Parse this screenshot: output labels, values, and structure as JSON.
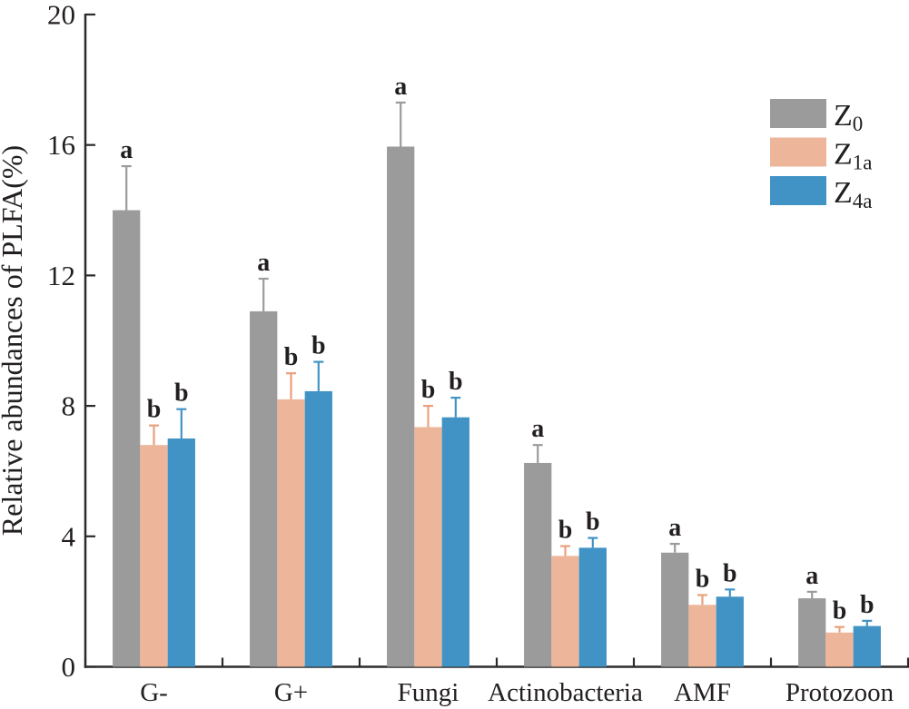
{
  "chart_data": {
    "type": "bar",
    "title": "",
    "xlabel": "",
    "ylabel": "Relative abundances of PLFA(%)",
    "ylim": [
      0,
      20
    ],
    "yticks": [
      0,
      4,
      8,
      12,
      16,
      20
    ],
    "grid": false,
    "legend_position": "top-right",
    "categories": [
      "G-",
      "G+",
      "Fungi",
      "Actinobacteria",
      "AMF",
      "Protozoon"
    ],
    "series": [
      {
        "name": "Z0",
        "label_base": "Z",
        "label_sub": "0",
        "color": "#9B9B9B",
        "error_color": "#9B9B9B",
        "values": [
          14.0,
          10.9,
          15.95,
          6.25,
          3.5,
          2.1
        ],
        "errors": [
          1.35,
          1.0,
          1.35,
          0.55,
          0.27,
          0.2
        ],
        "sig_letters": [
          "a",
          "a",
          "a",
          "a",
          "a",
          "a"
        ]
      },
      {
        "name": "Z1a",
        "label_base": "Z",
        "label_sub": "1a",
        "color": "#EDB69A",
        "error_color": "#E8A17E",
        "values": [
          6.8,
          8.2,
          7.35,
          3.4,
          1.9,
          1.05
        ],
        "errors": [
          0.6,
          0.8,
          0.65,
          0.3,
          0.3,
          0.17
        ],
        "sig_letters": [
          "b",
          "b",
          "b",
          "b",
          "b",
          "b"
        ]
      },
      {
        "name": "Z4a",
        "label_base": "Z",
        "label_sub": "4a",
        "color": "#4293C5",
        "error_color": "#4293C5",
        "values": [
          7.0,
          8.45,
          7.65,
          3.65,
          2.15,
          1.25
        ],
        "errors": [
          0.9,
          0.9,
          0.6,
          0.3,
          0.22,
          0.16
        ],
        "sig_letters": [
          "b",
          "b",
          "b",
          "b",
          "b",
          "b"
        ]
      }
    ],
    "text_color": "#231F20",
    "axis_color": "#2B2B2B"
  }
}
